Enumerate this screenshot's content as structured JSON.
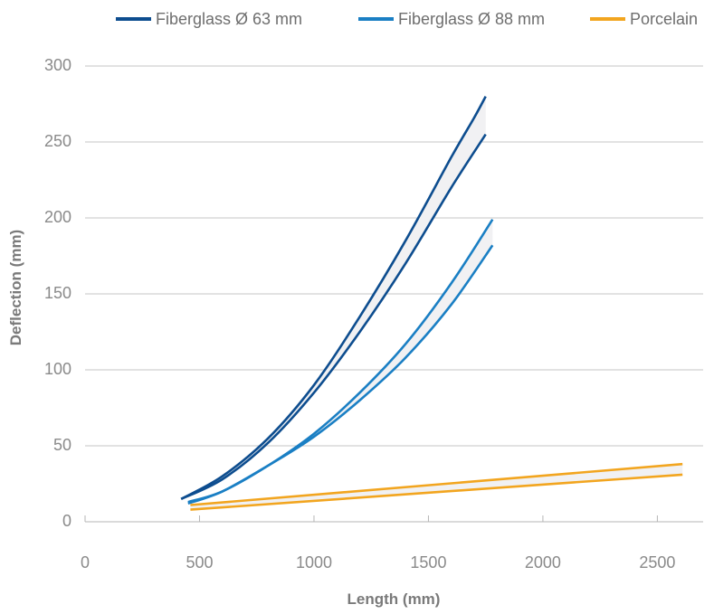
{
  "chart_data": {
    "type": "line",
    "xlabel": "Length (mm)",
    "ylabel": "Deflection (mm)",
    "xlim": [
      0,
      2700
    ],
    "ylim": [
      0,
      300
    ],
    "x_ticks": [
      0,
      500,
      1000,
      1500,
      2000,
      2500
    ],
    "y_ticks": [
      0,
      50,
      100,
      150,
      200,
      250,
      300
    ],
    "grid": "horizontal",
    "legend_position": "top",
    "legend": [
      {
        "name": "Fiberglass Ø 63 mm",
        "color": "#0d4d8f"
      },
      {
        "name": "Fiberglass Ø 88 mm",
        "color": "#1a7fc4"
      },
      {
        "name": "Porcelain",
        "color": "#f2a51f"
      }
    ],
    "band_fill": "#f1f1f3",
    "series": [
      {
        "legend_index": 0,
        "color": "#0d4d8f",
        "x": [
          420,
          600,
          800,
          1000,
          1200,
          1400,
          1600,
          1700,
          1750
        ],
        "y": [
          15,
          30,
          55,
          90,
          135,
          185,
          240,
          266,
          280
        ]
      },
      {
        "legend_index": 0,
        "color": "#0d4d8f",
        "x": [
          420,
          600,
          800,
          1000,
          1200,
          1400,
          1600,
          1750
        ],
        "y": [
          15,
          28,
          52,
          85,
          125,
          170,
          220,
          255
        ]
      },
      {
        "legend_index": 1,
        "color": "#1a7fc4",
        "x": [
          450,
          600,
          800,
          1000,
          1200,
          1400,
          1600,
          1780
        ],
        "y": [
          13,
          20,
          37,
          58,
          85,
          117,
          157,
          199
        ]
      },
      {
        "legend_index": 1,
        "color": "#1a7fc4",
        "x": [
          450,
          600,
          800,
          1000,
          1200,
          1400,
          1600,
          1780
        ],
        "y": [
          12,
          20,
          37,
          56,
          80,
          108,
          143,
          182
        ]
      },
      {
        "legend_index": 2,
        "color": "#f2a51f",
        "x": [
          460,
          2610
        ],
        "y": [
          11,
          38
        ]
      },
      {
        "legend_index": 2,
        "color": "#f2a51f",
        "x": [
          460,
          2610
        ],
        "y": [
          8,
          31
        ]
      }
    ],
    "bands": [
      [
        0,
        1
      ],
      [
        2,
        3
      ],
      [
        4,
        5
      ]
    ]
  }
}
